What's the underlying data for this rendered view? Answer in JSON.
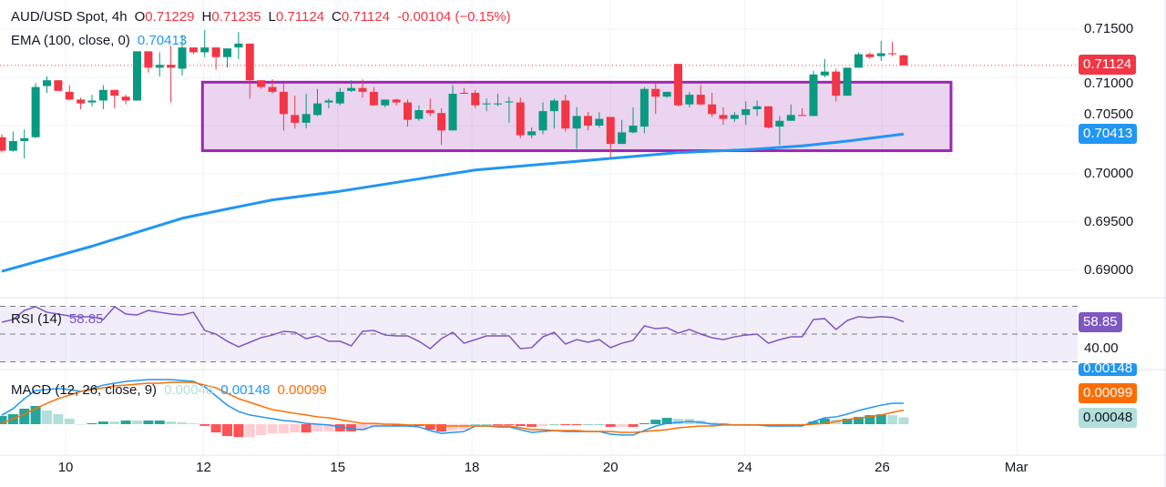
{
  "header": {
    "symbol": "AUD/USD Spot, 4h",
    "o_label": "O",
    "o": "0.71229",
    "h_label": "H",
    "h": "0.71235",
    "l_label": "L",
    "l": "0.71124",
    "c_label": "C",
    "c": "0.71124",
    "change": "-0.00104 (−0.15%)"
  },
  "ema_legend": {
    "label": "EMA (100, close, 0)",
    "value": "0.70413"
  },
  "rsi_legend": {
    "label": "RSI (14)",
    "value": "58.85"
  },
  "macd_legend": {
    "label": "MACD (12, 26, close, 9)",
    "hist": "0.00048",
    "macd": "0.00148",
    "signal": "0.00099"
  },
  "price_axis": {
    "ticks": [
      {
        "label": "0.71500",
        "value": 0.715
      },
      {
        "label": "0.71000",
        "value": 0.71
      },
      {
        "label": "0.70500",
        "value": 0.705
      },
      {
        "label": "0.70000",
        "value": 0.7
      },
      {
        "label": "0.69500",
        "value": 0.695
      },
      {
        "label": "0.69000",
        "value": 0.69
      }
    ],
    "last_price_badge": "0.71124",
    "ema_badge": "0.70413"
  },
  "rsi_axis": {
    "badge": "58.85",
    "tick": "40.00"
  },
  "macd_axis": {
    "macd_badge": "0.00148",
    "signal_badge": "0.00099",
    "hist_badge": "0.00048"
  },
  "time_axis": [
    {
      "label": "10",
      "at_bar": 6.66
    },
    {
      "label": "12",
      "at_bar": 18.9
    },
    {
      "label": "15",
      "at_bar": 30.8
    },
    {
      "label": "18",
      "at_bar": 42.7
    },
    {
      "label": "20",
      "at_bar": 55.0
    },
    {
      "label": "24",
      "at_bar": 66.9
    },
    {
      "label": "26",
      "at_bar": 79.1
    },
    {
      "label": "Mar",
      "at_bar": 91.0
    }
  ],
  "colors": {
    "up": "#089981",
    "down": "#F23645",
    "ema": "#2196F3",
    "rsi": "#7E57C2",
    "macd": "#2196F3",
    "signal": "#FF6D00",
    "rectangle": "#9C27B0",
    "hist_up_strong": "#26A69A",
    "hist_up_weak": "#B2DFDB",
    "hist_down_strong": "#FF5252",
    "hist_down_weak": "#FFCDD2"
  },
  "chart_data": [
    {
      "type": "candlestick",
      "title": "AUD/USD Spot, 4h",
      "ylim": [
        0.6875,
        0.7165
      ],
      "grid": true,
      "ohlc": [
        [
          0.7038,
          0.7041,
          0.7022,
          0.7024
        ],
        [
          0.7024,
          0.7044,
          0.7023,
          0.7034
        ],
        [
          0.7034,
          0.7046,
          0.7016,
          0.7037
        ],
        [
          0.7038,
          0.7094,
          0.7037,
          0.709
        ],
        [
          0.7091,
          0.7101,
          0.7084,
          0.7097
        ],
        [
          0.7097,
          0.7097,
          0.7086,
          0.7086
        ],
        [
          0.7085,
          0.7092,
          0.7076,
          0.7077
        ],
        [
          0.7077,
          0.7079,
          0.7067,
          0.7073
        ],
        [
          0.7074,
          0.7082,
          0.707,
          0.7076
        ],
        [
          0.7076,
          0.7092,
          0.7067,
          0.7087
        ],
        [
          0.7087,
          0.7087,
          0.7068,
          0.7081
        ],
        [
          0.708,
          0.7082,
          0.7072,
          0.7076
        ],
        [
          0.7076,
          0.7127,
          0.7076,
          0.7127
        ],
        [
          0.7127,
          0.7127,
          0.7105,
          0.711
        ],
        [
          0.711,
          0.7126,
          0.7101,
          0.7113
        ],
        [
          0.7113,
          0.7133,
          0.7074,
          0.711
        ],
        [
          0.7109,
          0.7144,
          0.7102,
          0.7131
        ],
        [
          0.7131,
          0.7131,
          0.7124,
          0.7126
        ],
        [
          0.7126,
          0.7149,
          0.7121,
          0.7131
        ],
        [
          0.7131,
          0.7131,
          0.7108,
          0.7121
        ],
        [
          0.7121,
          0.713,
          0.711,
          0.713
        ],
        [
          0.7131,
          0.7147,
          0.7119,
          0.7135
        ],
        [
          0.7135,
          0.7135,
          0.7078,
          0.7097
        ],
        [
          0.7097,
          0.7097,
          0.7088,
          0.709
        ],
        [
          0.709,
          0.7098,
          0.7083,
          0.7085
        ],
        [
          0.7085,
          0.7094,
          0.7045,
          0.7062
        ],
        [
          0.7061,
          0.7081,
          0.7047,
          0.7053
        ],
        [
          0.7053,
          0.7083,
          0.7047,
          0.7062
        ],
        [
          0.7061,
          0.7088,
          0.706,
          0.7073
        ],
        [
          0.7074,
          0.7078,
          0.7068,
          0.7076
        ],
        [
          0.7073,
          0.7089,
          0.7071,
          0.7085
        ],
        [
          0.7086,
          0.7097,
          0.7085,
          0.7089
        ],
        [
          0.7089,
          0.7098,
          0.7079,
          0.7085
        ],
        [
          0.7085,
          0.709,
          0.7071,
          0.7071
        ],
        [
          0.7071,
          0.7077,
          0.7069,
          0.7077
        ],
        [
          0.7077,
          0.7078,
          0.7071,
          0.7074
        ],
        [
          0.7074,
          0.7077,
          0.7049,
          0.7056
        ],
        [
          0.7057,
          0.7071,
          0.7055,
          0.7066
        ],
        [
          0.7066,
          0.7078,
          0.706,
          0.7063
        ],
        [
          0.7063,
          0.7068,
          0.703,
          0.7045
        ],
        [
          0.7045,
          0.7092,
          0.7045,
          0.7083
        ],
        [
          0.7084,
          0.7089,
          0.7083,
          0.7083
        ],
        [
          0.7084,
          0.7087,
          0.7068,
          0.7071
        ],
        [
          0.7072,
          0.7078,
          0.7065,
          0.7073
        ],
        [
          0.7072,
          0.7083,
          0.707,
          0.7073
        ],
        [
          0.7074,
          0.708,
          0.7053,
          0.7075
        ],
        [
          0.7074,
          0.7079,
          0.7037,
          0.704
        ],
        [
          0.704,
          0.7048,
          0.7037,
          0.7044
        ],
        [
          0.7045,
          0.7074,
          0.7041,
          0.7065
        ],
        [
          0.7065,
          0.7078,
          0.7047,
          0.7076
        ],
        [
          0.7076,
          0.7082,
          0.7044,
          0.7047
        ],
        [
          0.7047,
          0.7069,
          0.7026,
          0.706
        ],
        [
          0.706,
          0.7064,
          0.7045,
          0.705
        ],
        [
          0.705,
          0.7064,
          0.7048,
          0.7057
        ],
        [
          0.7059,
          0.7059,
          0.7017,
          0.7031
        ],
        [
          0.7031,
          0.7056,
          0.7031,
          0.7043
        ],
        [
          0.7043,
          0.7069,
          0.7042,
          0.705
        ],
        [
          0.7049,
          0.709,
          0.7042,
          0.7088
        ],
        [
          0.7088,
          0.7095,
          0.7062,
          0.708
        ],
        [
          0.708,
          0.7085,
          0.7079,
          0.7085
        ],
        [
          0.7114,
          0.7114,
          0.707,
          0.7071
        ],
        [
          0.7072,
          0.7085,
          0.7069,
          0.7082
        ],
        [
          0.7082,
          0.7092,
          0.7071,
          0.7072
        ],
        [
          0.7072,
          0.7084,
          0.7059,
          0.7062
        ],
        [
          0.7061,
          0.7069,
          0.7051,
          0.7057
        ],
        [
          0.7057,
          0.7064,
          0.7054,
          0.7061
        ],
        [
          0.7061,
          0.7075,
          0.7051,
          0.7067
        ],
        [
          0.7067,
          0.7076,
          0.706,
          0.707
        ],
        [
          0.707,
          0.707,
          0.7047,
          0.7048
        ],
        [
          0.7049,
          0.706,
          0.703,
          0.7055
        ],
        [
          0.7055,
          0.7072,
          0.7055,
          0.7061
        ],
        [
          0.7061,
          0.7068,
          0.706,
          0.706
        ],
        [
          0.706,
          0.7107,
          0.706,
          0.7103
        ],
        [
          0.7102,
          0.7119,
          0.71,
          0.7106
        ],
        [
          0.7106,
          0.7109,
          0.7075,
          0.7081
        ],
        [
          0.7081,
          0.711,
          0.7081,
          0.711
        ],
        [
          0.711,
          0.7126,
          0.711,
          0.7124
        ],
        [
          0.7124,
          0.7126,
          0.7119,
          0.7121
        ],
        [
          0.7122,
          0.7138,
          0.7117,
          0.7125
        ],
        [
          0.7125,
          0.7137,
          0.7122,
          0.7124
        ],
        [
          0.71229,
          0.71235,
          0.71124,
          0.71124
        ]
      ],
      "ema100": [
        [
          1,
          0.6899
        ],
        [
          9,
          0.6925
        ],
        [
          17,
          0.6954
        ],
        [
          22,
          0.6966
        ],
        [
          25,
          0.6973
        ],
        [
          31,
          0.6982
        ],
        [
          37,
          0.6993
        ],
        [
          43,
          0.7004
        ],
        [
          49,
          0.701
        ],
        [
          55,
          0.7016
        ],
        [
          61,
          0.7022
        ],
        [
          67,
          0.7025
        ],
        [
          72,
          0.7029
        ],
        [
          76,
          0.7034
        ],
        [
          81,
          0.70413
        ]
      ],
      "last_price": 0.71124,
      "rectangle": {
        "from_bar": 18.8,
        "to_bar": 85.2,
        "top": 0.7095,
        "bottom": 0.7024
      }
    },
    {
      "type": "line",
      "title": "RSI (14)",
      "ylim": [
        26,
        72
      ],
      "bands": [
        70,
        50,
        30
      ],
      "values": [
        58.5,
        60.5,
        67,
        69.7,
        65.7,
        64.4,
        63,
        62.5,
        62.5,
        60.5,
        69.7,
        64.4,
        63.8,
        67,
        65.7,
        64.4,
        63.8,
        65.7,
        52.6,
        50,
        44.8,
        40.8,
        44.1,
        47.4,
        49.3,
        52,
        51.3,
        46.7,
        48.7,
        44.8,
        44.8,
        41.5,
        52,
        52.6,
        49.3,
        48.7,
        48.7,
        44.8,
        39.5,
        46.7,
        51.3,
        43.4,
        46,
        48.7,
        48.7,
        48.7,
        39.5,
        40.2,
        48,
        51.3,
        42.8,
        46,
        44.1,
        46,
        40.2,
        43.4,
        45.4,
        55.9,
        53.9,
        54.6,
        50.7,
        53.3,
        50,
        47.4,
        46,
        48,
        49.3,
        50,
        43.4,
        46,
        48,
        48,
        60.5,
        61.1,
        53.3,
        59.8,
        62.5,
        61.8,
        62.5,
        62,
        58.85
      ]
    },
    {
      "type": "line",
      "title": "MACD (12, 26, close, 9)",
      "series": [
        {
          "name": "MACD",
          "values": [
            0.00065,
            0.0011,
            0.00181,
            0.00239,
            0.00245,
            0.00252,
            0.00245,
            0.00232,
            0.00252,
            0.00277,
            0.0029,
            0.00303,
            0.0031,
            0.00316,
            0.00316,
            0.00316,
            0.0031,
            0.00303,
            0.00265,
            0.002,
            0.00135,
            0.0009,
            0.00065,
            0.00052,
            0.00039,
            0.00026,
            0.00019,
            6e-05,
            0,
            -6e-05,
            -0.00019,
            -0.00032,
            -0.00039,
            -0.00013,
            -0.00013,
            -0.00013,
            -0.00013,
            -0.00019,
            -0.00045,
            -0.00065,
            -0.00058,
            -0.00052,
            -0.00013,
            -0.00013,
            -0.00019,
            -0.00019,
            -0.00039,
            -0.00058,
            -0.00052,
            -0.00045,
            -0.00052,
            -0.00052,
            -0.00052,
            -0.00052,
            -0.00071,
            -0.00077,
            -0.00077,
            -0.00045,
            -0.00013,
            6e-05,
            0.00013,
            0.00019,
            0.00013,
            0,
            0,
            -6e-05,
            -6e-05,
            -6e-05,
            -0.00013,
            -0.00013,
            -0.00013,
            -0.00013,
            0.00019,
            0.00045,
            0.00052,
            0.00071,
            0.00097,
            0.00116,
            0.00135,
            0.00148,
            0.00148
          ]
        },
        {
          "name": "Signal",
          "values": [
            6e-05,
            0.00039,
            0.00071,
            0.0011,
            0.00148,
            0.00181,
            0.00206,
            0.00232,
            0.00245,
            0.00258,
            0.00271,
            0.00277,
            0.00284,
            0.0029,
            0.0029,
            0.00297,
            0.00297,
            0.00297,
            0.00277,
            0.00258,
            0.00219,
            0.00181,
            0.00155,
            0.00129,
            0.00103,
            0.0009,
            0.00077,
            0.00065,
            0.00052,
            0.00045,
            0.00032,
            0.00019,
            6e-05,
            6e-05,
            0,
            0,
            -6e-05,
            -6e-05,
            -6e-05,
            -0.00013,
            -0.00013,
            -0.00013,
            -0.00013,
            -0.00013,
            -0.00013,
            -0.00013,
            -0.00026,
            -0.00039,
            -0.00039,
            -0.00045,
            -0.00045,
            -0.00045,
            -0.00052,
            -0.00052,
            -0.00052,
            -0.00058,
            -0.00058,
            -0.00052,
            -0.00045,
            -0.00039,
            -0.00026,
            -0.00019,
            -0.00013,
            -0.00013,
            -6e-05,
            -6e-05,
            -6e-05,
            -6e-05,
            -6e-05,
            -6e-05,
            -6e-05,
            -6e-05,
            0,
            6e-05,
            0.00019,
            0.00032,
            0.00045,
            0.00052,
            0.00065,
            0.00084,
            0.00099
          ]
        }
      ]
    }
  ]
}
